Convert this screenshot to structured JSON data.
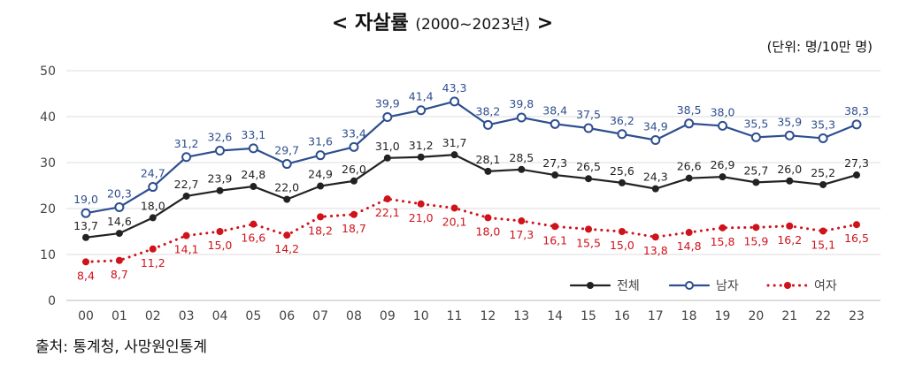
{
  "title": {
    "main": "자살률",
    "sub": "(2000~2023년)",
    "left_bracket": "<",
    "right_bracket": ">"
  },
  "unit": "(단위: 명/10만 명)",
  "source": "출처: 통계청, 사망원인통계",
  "chart_data": {
    "type": "line",
    "categories": [
      "00",
      "01",
      "02",
      "03",
      "04",
      "05",
      "06",
      "07",
      "08",
      "09",
      "10",
      "11",
      "12",
      "13",
      "14",
      "15",
      "16",
      "17",
      "18",
      "19",
      "20",
      "21",
      "22",
      "23"
    ],
    "ylim": [
      0,
      50
    ],
    "yticks": [
      0,
      10,
      20,
      30,
      40,
      50
    ],
    "grid": true,
    "legend_position": "bottom-right",
    "series": [
      {
        "name": "전체",
        "color": "#222222",
        "marker": "filled-circle",
        "style": "solid",
        "values": [
          13.7,
          14.6,
          18.0,
          22.7,
          23.9,
          24.8,
          22.0,
          24.9,
          26.0,
          31.0,
          31.2,
          31.7,
          28.1,
          28.5,
          27.3,
          26.5,
          25.6,
          24.3,
          26.6,
          26.9,
          25.7,
          26.0,
          25.2,
          27.3
        ]
      },
      {
        "name": "남자",
        "color": "#2E4F8F",
        "marker": "open-circle",
        "style": "solid",
        "values": [
          19.0,
          20.3,
          24.7,
          31.2,
          32.6,
          33.1,
          29.7,
          31.6,
          33.4,
          39.9,
          41.4,
          43.3,
          38.2,
          39.8,
          38.4,
          37.5,
          36.2,
          34.9,
          38.5,
          38.0,
          35.5,
          35.9,
          35.3,
          38.3
        ]
      },
      {
        "name": "여자",
        "color": "#D0121B",
        "marker": "filled-circle",
        "style": "dotted",
        "values": [
          8.4,
          8.7,
          11.2,
          14.1,
          15.0,
          16.6,
          14.2,
          18.2,
          18.7,
          22.1,
          21.0,
          20.1,
          18.0,
          17.3,
          16.1,
          15.5,
          15.0,
          13.8,
          14.8,
          15.8,
          15.9,
          16.2,
          15.1,
          16.5
        ]
      }
    ]
  }
}
